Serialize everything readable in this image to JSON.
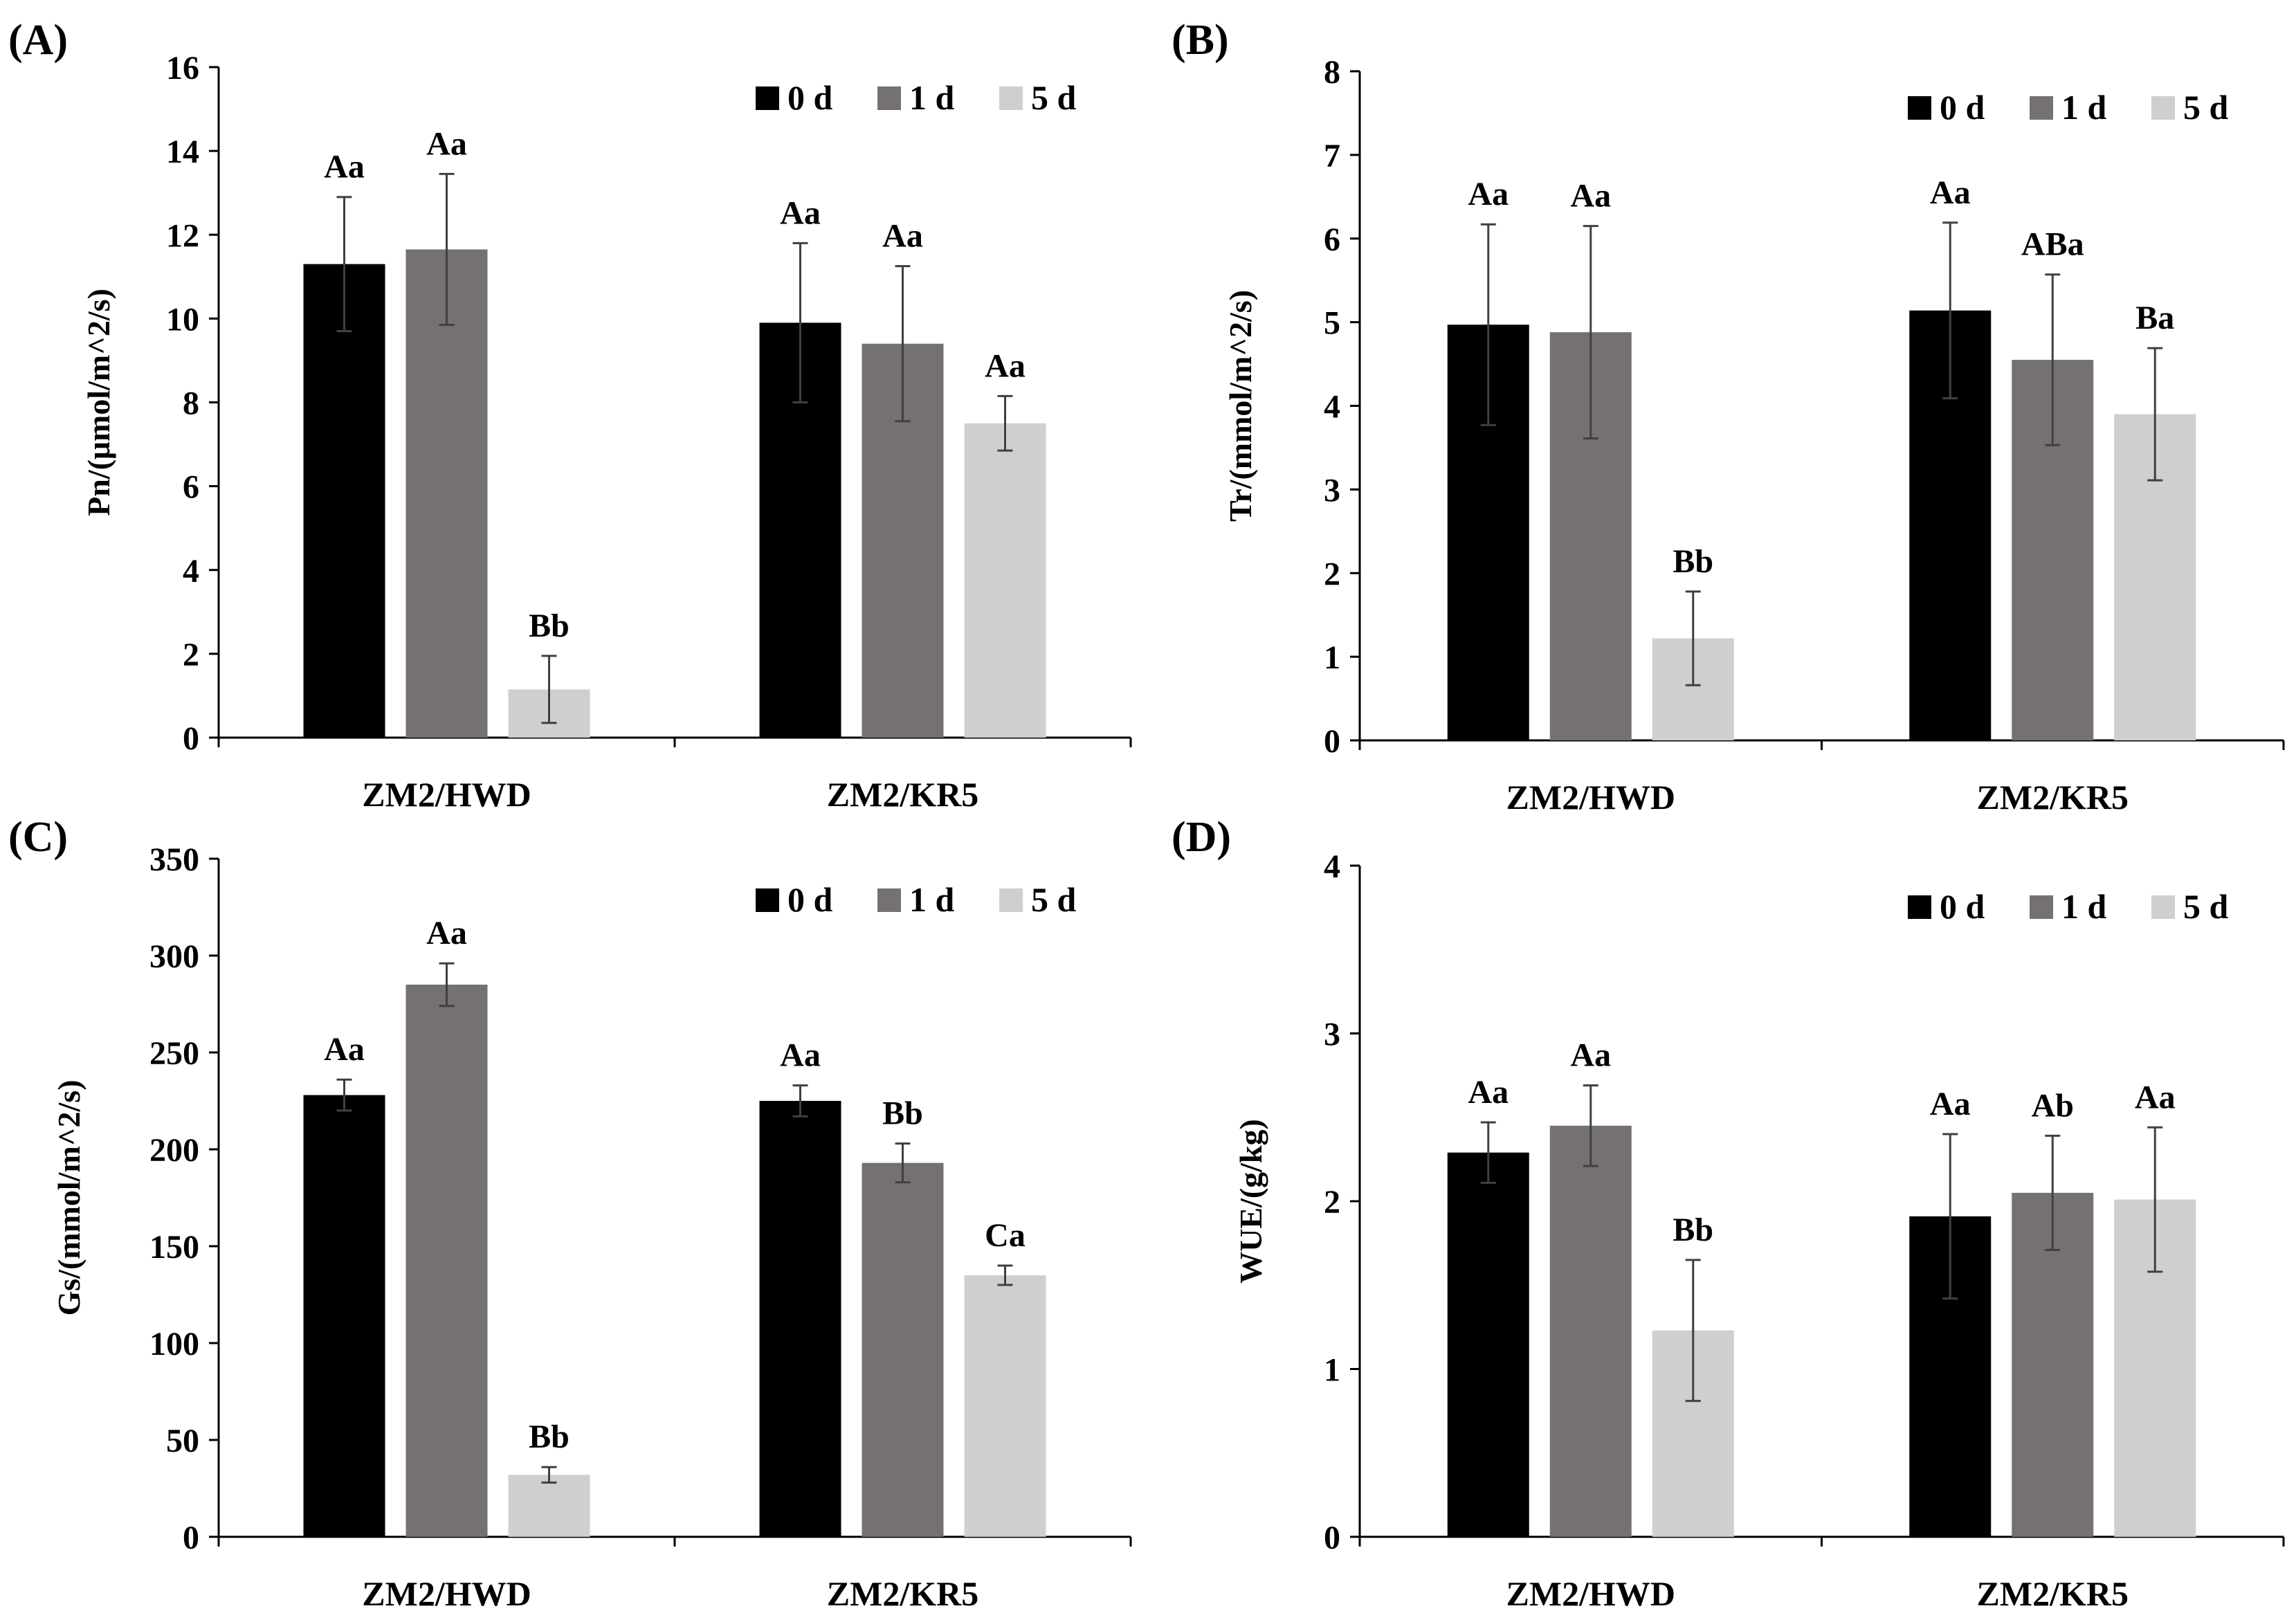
{
  "colors": {
    "series": [
      "#000000",
      "#767171",
      "#d0cece"
    ],
    "axis": "#000000",
    "errbar": "#404040"
  },
  "chart_data": [
    {
      "panel": "(A)",
      "type": "bar",
      "ylabel": "Pn/(μmol/m^2/s)",
      "ylim": [
        0,
        16
      ],
      "yticks": [
        "0",
        "2",
        "4",
        "6",
        "8",
        "10",
        "12",
        "14",
        "16"
      ],
      "categories": [
        "ZM2/HWD",
        "ZM2/KR5"
      ],
      "legend": [
        "0 d",
        "1 d",
        "5 d"
      ],
      "legend_position": "top-right",
      "series": [
        {
          "name": "0 d",
          "values": [
            11.3,
            9.9
          ],
          "errors": [
            1.6,
            1.9
          ],
          "labels": [
            "Aa",
            "Aa"
          ]
        },
        {
          "name": "1 d",
          "values": [
            11.65,
            9.4
          ],
          "errors": [
            1.8,
            1.85
          ],
          "labels": [
            "Aa",
            "Aa"
          ]
        },
        {
          "name": "5 d",
          "values": [
            1.15,
            7.5
          ],
          "errors": [
            0.8,
            0.65
          ],
          "labels": [
            "Bb",
            "Aa"
          ]
        }
      ]
    },
    {
      "panel": "(B)",
      "type": "bar",
      "ylabel": "Tr/(mmol/m^2/s)",
      "ylim": [
        0,
        8
      ],
      "yticks": [
        "0",
        "1",
        "2",
        "3",
        "4",
        "5",
        "6",
        "7",
        "8"
      ],
      "categories": [
        "ZM2/HWD",
        "ZM2/KR5"
      ],
      "legend": [
        "0 d",
        "1 d",
        "5 d"
      ],
      "legend_position": "top-right",
      "series": [
        {
          "name": "0 d",
          "values": [
            4.97,
            5.14
          ],
          "errors": [
            1.2,
            1.05
          ],
          "labels": [
            "Aa",
            "Aa"
          ]
        },
        {
          "name": "1 d",
          "values": [
            4.88,
            4.55
          ],
          "errors": [
            1.27,
            1.02
          ],
          "labels": [
            "Aa",
            "ABa"
          ]
        },
        {
          "name": "5 d",
          "values": [
            1.22,
            3.9
          ],
          "errors": [
            0.56,
            0.79
          ],
          "labels": [
            "Bb",
            "Ba"
          ]
        }
      ]
    },
    {
      "panel": "(C)",
      "type": "bar",
      "ylabel": "Gs/(mmol/m^2/s)",
      "ylim": [
        0,
        350
      ],
      "yticks": [
        "0",
        "50",
        "100",
        "150",
        "200",
        "250",
        "300",
        "350"
      ],
      "categories": [
        "ZM2/HWD",
        "ZM2/KR5"
      ],
      "legend": [
        "0 d",
        "1 d",
        "5 d"
      ],
      "legend_position": "top-right",
      "series": [
        {
          "name": "0 d",
          "values": [
            228,
            225
          ],
          "errors": [
            8,
            8
          ],
          "labels": [
            "Aa",
            "Aa"
          ]
        },
        {
          "name": "1 d",
          "values": [
            285,
            193
          ],
          "errors": [
            11,
            10
          ],
          "labels": [
            "Aa",
            "Bb"
          ]
        },
        {
          "name": "5 d",
          "values": [
            32,
            135
          ],
          "errors": [
            4,
            5
          ],
          "labels": [
            "Bb",
            "Ca"
          ]
        }
      ]
    },
    {
      "panel": "(D)",
      "type": "bar",
      "ylabel": "WUE/(g/kg)",
      "ylim": [
        0,
        4
      ],
      "yticks": [
        "0",
        "1",
        "2",
        "3",
        "4"
      ],
      "categories": [
        "ZM2/HWD",
        "ZM2/KR5"
      ],
      "legend": [
        "0 d",
        "1 d",
        "5 d"
      ],
      "legend_position": "top-right",
      "series": [
        {
          "name": "0 d",
          "values": [
            2.29,
            1.91
          ],
          "errors": [
            0.18,
            0.49
          ],
          "labels": [
            "Aa",
            "Aa"
          ]
        },
        {
          "name": "1 d",
          "values": [
            2.45,
            2.05
          ],
          "errors": [
            0.24,
            0.34
          ],
          "labels": [
            "Aa",
            "Ab"
          ]
        },
        {
          "name": "5 d",
          "values": [
            1.23,
            2.01
          ],
          "errors": [
            0.42,
            0.43
          ],
          "labels": [
            "Bb",
            "Aa"
          ]
        }
      ]
    }
  ]
}
